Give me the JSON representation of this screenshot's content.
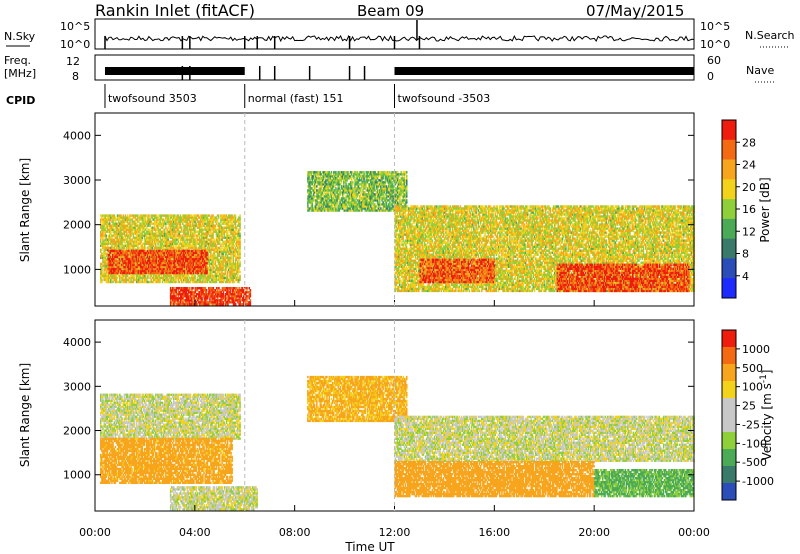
{
  "header": {
    "station": "Rankin Inlet (fitACF)",
    "beam": "Beam 09",
    "date": "07/May/2015"
  },
  "summary": {
    "nsky_label": "N.Sky",
    "nsky_ticks": [
      "10^5",
      "10^0"
    ],
    "nsearch_label": "N.Search",
    "nsearch_ticks": [
      "10^5",
      "10^0"
    ],
    "freq_label_1": "Freq.",
    "freq_label_2": "[MHz]",
    "freq_ticks": [
      "12",
      "8"
    ],
    "nave_label": "Nave",
    "nave_ticks": [
      "60",
      "0"
    ],
    "cpid_label": "CPID",
    "cpid_segments": [
      {
        "label": "twofsound 3503",
        "start": 0.4,
        "end": 6.0
      },
      {
        "label": "normal (fast) 151",
        "start": 6.0,
        "end": 12.0
      },
      {
        "label": "twofsound -3503",
        "start": 12.0,
        "end": 24.0
      }
    ]
  },
  "chart_data": [
    {
      "type": "heatmap",
      "name": "power",
      "xlabel": "",
      "ylabel": "Slant Range [km]",
      "xlim": [
        0,
        24
      ],
      "ylim": [
        180,
        4500
      ],
      "yticks": [
        1000,
        2000,
        3000,
        4000
      ],
      "xticks": [
        0,
        4,
        8,
        12,
        16,
        20,
        24
      ],
      "colorbar": {
        "label": "Power [dB]",
        "ticks": [
          "4",
          "8",
          "12",
          "16",
          "20",
          "24",
          "28"
        ],
        "range": [
          0,
          30
        ]
      },
      "echo_regions": [
        {
          "t0": 0.2,
          "t1": 5.8,
          "r0": 700,
          "r1": 2200,
          "value": 18
        },
        {
          "t0": 0.5,
          "t1": 4.5,
          "r0": 900,
          "r1": 1400,
          "value": 27
        },
        {
          "t0": 3.0,
          "t1": 6.2,
          "r0": 200,
          "r1": 600,
          "value": 28
        },
        {
          "t0": 8.5,
          "t1": 12.5,
          "r0": 2300,
          "r1": 3200,
          "value": 14
        },
        {
          "t0": 12.0,
          "t1": 24.0,
          "r0": 500,
          "r1": 2400,
          "value": 18
        },
        {
          "t0": 13.0,
          "t1": 16.0,
          "r0": 700,
          "r1": 1200,
          "value": 26
        },
        {
          "t0": 18.5,
          "t1": 23.8,
          "r0": 500,
          "r1": 1100,
          "value": 27
        }
      ]
    },
    {
      "type": "heatmap",
      "name": "velocity",
      "xlabel": "Time UT",
      "ylabel": "Slant Range [km]",
      "xlim": [
        0,
        24
      ],
      "ylim": [
        180,
        4500
      ],
      "yticks": [
        1000,
        2000,
        3000,
        4000
      ],
      "xticks": [
        0,
        4,
        8,
        12,
        16,
        20,
        24
      ],
      "xticklabels": [
        "00:00",
        "04:00",
        "08:00",
        "12:00",
        "16:00",
        "20:00",
        "00:00"
      ],
      "colorbar": {
        "label": "Velocity [m s",
        "label_sup": "-1",
        "label_end": "]",
        "ticks": [
          "1000",
          "500",
          "100",
          "25",
          "-25",
          "-100",
          "-500",
          "-1000"
        ]
      },
      "echo_regions": [
        {
          "t0": 0.2,
          "t1": 5.8,
          "r0": 1800,
          "r1": 2800,
          "value": 0
        },
        {
          "t0": 0.2,
          "t1": 5.5,
          "r0": 800,
          "r1": 1800,
          "value": -150
        },
        {
          "t0": 3.0,
          "t1": 6.5,
          "r0": 200,
          "r1": 700,
          "value": 0
        },
        {
          "t0": 8.5,
          "t1": 12.5,
          "r0": 2200,
          "r1": 3200,
          "value": -120
        },
        {
          "t0": 12.0,
          "t1": 24.0,
          "r0": 1300,
          "r1": 2300,
          "value": 0
        },
        {
          "t0": 12.0,
          "t1": 20.0,
          "r0": 500,
          "r1": 1300,
          "value": -250
        },
        {
          "t0": 20.0,
          "t1": 24.0,
          "r0": 500,
          "r1": 1100,
          "value": 120
        }
      ]
    }
  ],
  "colors": {
    "power_scale": [
      "#1d2bff",
      "#2a4db8",
      "#3a7a6a",
      "#4aaa55",
      "#8fcf3a",
      "#f3d21c",
      "#f7a51d",
      "#f36a12",
      "#ee1d0e"
    ],
    "velocity_scale": [
      "#ee1d0e",
      "#f36a12",
      "#f7a51d",
      "#f3d21c",
      "#c8c8c8",
      "#c8c8c8",
      "#8fcf3a",
      "#4aaa55",
      "#3a7a6a",
      "#2a4db8"
    ]
  }
}
